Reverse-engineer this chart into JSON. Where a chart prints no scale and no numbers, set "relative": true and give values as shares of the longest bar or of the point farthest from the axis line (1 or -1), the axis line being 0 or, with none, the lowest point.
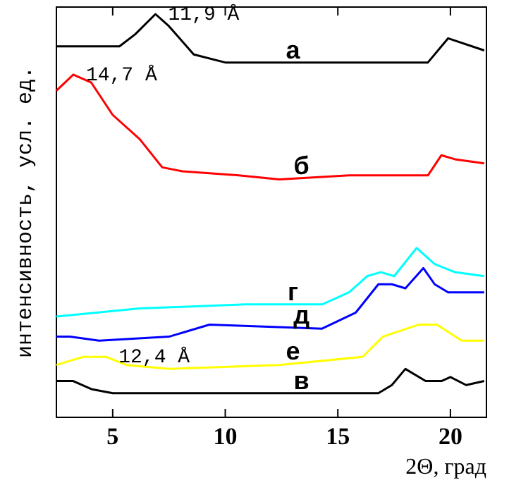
{
  "chart_data": {
    "type": "line",
    "relative": true,
    "xlabel": "2Θ, град",
    "ylabel": "интенсивность, усл. ед.",
    "xlim": [
      2.5,
      21.6
    ],
    "xticks": [
      5,
      10,
      15,
      20
    ],
    "grid": false,
    "legend": false,
    "marker": "none",
    "line_style": "solid",
    "series": [
      {
        "name": "а",
        "color": "#000000",
        "x": [
          2.5,
          5.3,
          6.0,
          6.9,
          7.5,
          8.6,
          10,
          19.0,
          19.9,
          21.5
        ],
        "values": [
          0.92,
          0.92,
          0.95,
          1.0,
          0.97,
          0.9,
          0.88,
          0.88,
          0.94,
          0.91
        ]
      },
      {
        "name": "б",
        "color": "#ff0000",
        "x": [
          2.5,
          3.25,
          4.05,
          5.0,
          6.2,
          7.2,
          8.1,
          10.6,
          12.4,
          15.5,
          19.0,
          19.6,
          20.2,
          21.5
        ],
        "values": [
          0.81,
          0.85,
          0.83,
          0.75,
          0.69,
          0.62,
          0.61,
          0.6,
          0.59,
          0.6,
          0.6,
          0.65,
          0.64,
          0.63
        ]
      },
      {
        "name": "г",
        "color": "#00ffff",
        "x": [
          2.5,
          6.2,
          10.9,
          14.3,
          15.5,
          16.3,
          16.9,
          17.5,
          18.5,
          19.3,
          20.2,
          21.5
        ],
        "values": [
          0.25,
          0.27,
          0.28,
          0.28,
          0.31,
          0.35,
          0.36,
          0.35,
          0.42,
          0.38,
          0.36,
          0.35
        ]
      },
      {
        "name": "д",
        "color": "#0000ff",
        "x": [
          2.5,
          3.1,
          4.4,
          7.5,
          9.3,
          14.3,
          15.8,
          16.8,
          17.4,
          18.0,
          18.8,
          19.3,
          19.9,
          21.5
        ],
        "values": [
          0.2,
          0.2,
          0.19,
          0.2,
          0.23,
          0.22,
          0.26,
          0.33,
          0.33,
          0.32,
          0.37,
          0.33,
          0.31,
          0.31
        ]
      },
      {
        "name": "е",
        "color": "#ffff00",
        "x": [
          2.5,
          3.7,
          4.7,
          5.6,
          7.5,
          12.4,
          16.1,
          17.0,
          18.6,
          19.4,
          20.5,
          21.5
        ],
        "values": [
          0.13,
          0.15,
          0.15,
          0.13,
          0.12,
          0.13,
          0.15,
          0.2,
          0.23,
          0.23,
          0.19,
          0.19
        ]
      },
      {
        "name": "в",
        "color": "#000000",
        "x": [
          2.5,
          3.25,
          4.05,
          5.0,
          8.7,
          16.8,
          17.4,
          18.0,
          18.9,
          19.6,
          20.0,
          20.7,
          21.5
        ],
        "values": [
          0.09,
          0.09,
          0.07,
          0.06,
          0.06,
          0.06,
          0.08,
          0.12,
          0.09,
          0.09,
          0.1,
          0.08,
          0.09
        ]
      }
    ],
    "annotations": [
      {
        "text": "11,9 Å",
        "x": 6.9,
        "y": 1.0
      },
      {
        "text": "14,7 Å",
        "x": 3.25,
        "y": 0.85
      },
      {
        "text": "12,4 Å",
        "x": 4.7,
        "y": 0.15
      }
    ]
  }
}
